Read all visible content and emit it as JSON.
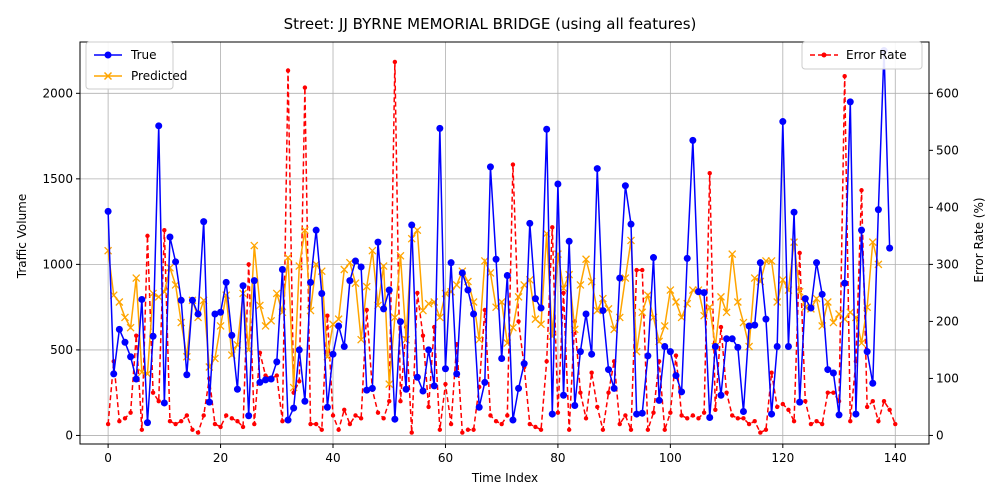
{
  "chart_data": {
    "type": "line",
    "title": "Street: JJ BYRNE MEMORIAL BRIDGE (using all features)",
    "xlabel": "Time Index",
    "ylabel": "Traffic Volume",
    "ylabel_right": "Error Rate (%)",
    "xlim": [
      -5,
      146
    ],
    "ylim": [
      -50,
      2300
    ],
    "ylim_right": [
      -15,
      690
    ],
    "x_ticks": [
      "0",
      "20",
      "40",
      "60",
      "80",
      "100",
      "120",
      "140"
    ],
    "x_tick_values": [
      0,
      20,
      40,
      60,
      80,
      100,
      120,
      140
    ],
    "y_ticks": [
      "0",
      "500",
      "1000",
      "1500",
      "2000"
    ],
    "y_tick_values": [
      0,
      500,
      1000,
      1500,
      2000
    ],
    "y_ticks_right": [
      "0",
      "100",
      "200",
      "300",
      "400",
      "500",
      "600"
    ],
    "y_tick_values_right": [
      0,
      100,
      200,
      300,
      400,
      500,
      600
    ],
    "grid": true,
    "legend_left": "upper-left",
    "legend_right": "upper-right",
    "series": [
      {
        "name": "True",
        "axis": "left",
        "color": "#0000ff",
        "marker": "circle",
        "values": [
          1310,
          360,
          620,
          545,
          460,
          330,
          795,
          75,
          580,
          1810,
          190,
          1160,
          1015,
          790,
          355,
          790,
          710,
          1250,
          195,
          710,
          720,
          895,
          585,
          270,
          875,
          115,
          905,
          310,
          325,
          330,
          430,
          970,
          90,
          160,
          500,
          200,
          895,
          1200,
          830,
          165,
          475,
          640,
          520,
          905,
          1020,
          985,
          265,
          275,
          1130,
          740,
          850,
          95,
          665,
          270,
          1230,
          340,
          260,
          500,
          290,
          1795,
          390,
          1010,
          360,
          950,
          850,
          710,
          165,
          310,
          1570,
          1030,
          450,
          935,
          90,
          275,
          420,
          1240,
          800,
          745,
          1790,
          125,
          1470,
          235,
          1135,
          175,
          490,
          710,
          475,
          1560,
          730,
          385,
          275,
          920,
          1460,
          1235,
          125,
          130,
          465,
          1040,
          205,
          520,
          490,
          350,
          255,
          1035,
          1725,
          840,
          835,
          105,
          520,
          235,
          565,
          565,
          515,
          140,
          640,
          645,
          1010,
          680,
          125,
          520,
          1835,
          520,
          1305,
          195,
          800,
          745,
          1010,
          825,
          385,
          365,
          120,
          890,
          1950,
          125,
          1200,
          490,
          305,
          1320,
          2250,
          1095
        ]
      },
      {
        "name": "Predicted",
        "axis": "left",
        "color": "#ffa500",
        "marker": "x",
        "values": [
          1080,
          820,
          780,
          690,
          630,
          920,
          370,
          360,
          830,
          810,
          840,
          980,
          880,
          660,
          460,
          790,
          690,
          790,
          400,
          450,
          640,
          820,
          470,
          530,
          830,
          500,
          1110,
          760,
          640,
          670,
          830,
          720,
          1040,
          280,
          990,
          1200,
          730,
          1000,
          960,
          460,
          650,
          680,
          970,
          1010,
          890,
          560,
          870,
          1080,
          760,
          990,
          300,
          690,
          1050,
          560,
          1150,
          1200,
          730,
          770,
          780,
          690,
          830,
          840,
          880,
          960,
          900,
          780,
          560,
          1020,
          950,
          750,
          780,
          540,
          630,
          810,
          880,
          910,
          680,
          650,
          1180,
          580,
          1060,
          860,
          940,
          620,
          880,
          1030,
          900,
          730,
          800,
          740,
          620,
          690,
          920,
          1140,
          490,
          720,
          820,
          690,
          550,
          640,
          850,
          780,
          690,
          770,
          850,
          850,
          700,
          750,
          520,
          810,
          720,
          1060,
          780,
          660,
          520,
          920,
          900,
          1020,
          1020,
          780,
          910,
          850,
          1130,
          840,
          750,
          740,
          800,
          640,
          780,
          660,
          710,
          680,
          720,
          690,
          540,
          750,
          1130,
          1000
        ]
      },
      {
        "name": "Error Rate",
        "axis": "right",
        "color": "#ff0000",
        "marker": "dot",
        "dashed": true,
        "values": [
          20,
          130,
          25,
          30,
          40,
          175,
          10,
          350,
          75,
          60,
          360,
          25,
          20,
          25,
          35,
          10,
          5,
          35,
          100,
          20,
          15,
          35,
          30,
          25,
          15,
          300,
          20,
          145,
          105,
          100,
          105,
          25,
          640,
          75,
          95,
          610,
          20,
          20,
          10,
          210,
          35,
          10,
          45,
          20,
          35,
          30,
          220,
          80,
          40,
          30,
          60,
          655,
          60,
          190,
          5,
          250,
          175,
          50,
          190,
          10,
          90,
          20,
          160,
          5,
          10,
          10,
          85,
          220,
          35,
          25,
          20,
          35,
          475,
          200,
          120,
          20,
          15,
          10,
          130,
          365,
          40,
          250,
          10,
          200,
          75,
          30,
          110,
          50,
          10,
          75,
          130,
          20,
          35,
          10,
          290,
          290,
          10,
          40,
          130,
          10,
          40,
          140,
          35,
          30,
          35,
          30,
          40,
          460,
          45,
          190,
          75,
          35,
          30,
          30,
          20,
          25,
          5,
          10,
          110,
          50,
          55,
          45,
          25,
          320,
          60,
          20,
          25,
          20,
          75,
          75,
          60,
          630,
          25,
          130,
          430,
          50,
          60,
          25,
          60,
          45,
          20
        ]
      }
    ]
  }
}
